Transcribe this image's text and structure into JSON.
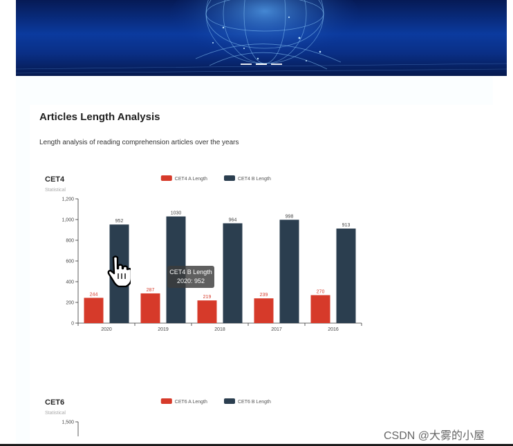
{
  "banner": {
    "alt": "network globe banner"
  },
  "section": {
    "title": "Articles Length Analysis",
    "description": "Length analysis of reading comprehension articles over the years"
  },
  "chart_data": [
    {
      "type": "bar",
      "title": "CET4",
      "subtitle": "Statistical",
      "categories": [
        "2020",
        "2019",
        "2018",
        "2017",
        "2016"
      ],
      "series": [
        {
          "name": "CET4 A Length",
          "values": [
            244,
            287,
            219,
            239,
            270
          ],
          "color": "#d63a2a"
        },
        {
          "name": "CET4 B Length",
          "values": [
            952,
            1030,
            964,
            998,
            913
          ],
          "color": "#2b3e4f"
        }
      ],
      "ylim": [
        0,
        1200
      ],
      "yticks": [
        "0",
        "200",
        "400",
        "600",
        "800",
        "1,000",
        "1,200"
      ],
      "legend": "top-center",
      "tooltip": {
        "title": "CET4 B Length",
        "text": "2020: 952"
      }
    },
    {
      "type": "bar",
      "title": "CET6",
      "subtitle": "Statistical",
      "series": [
        {
          "name": "CET6 A Length",
          "color": "#d63a2a"
        },
        {
          "name": "CET6 B Length",
          "color": "#2b3e4f"
        }
      ],
      "yticks_visible": [
        "1,500"
      ],
      "legend": "top-center"
    }
  ],
  "watermark": "CSDN @大雾的小屋"
}
